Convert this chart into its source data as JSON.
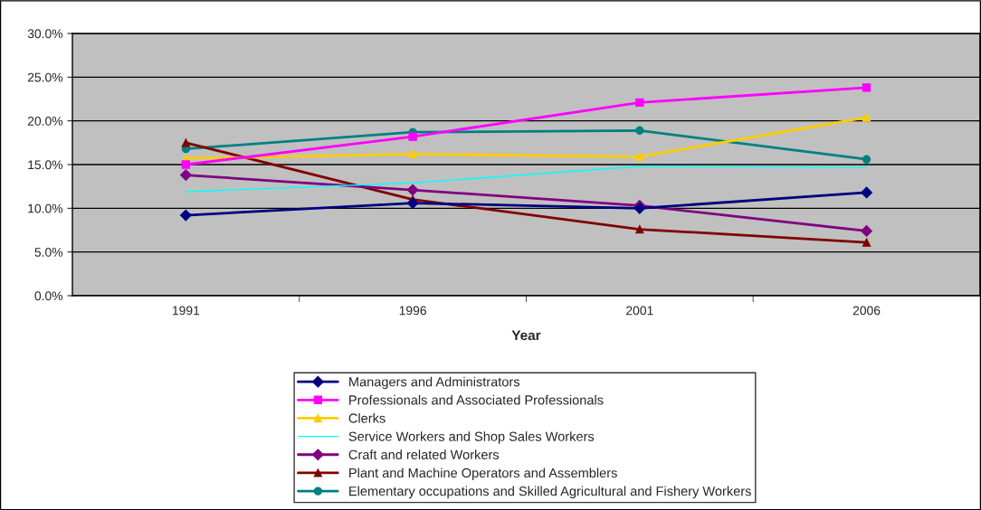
{
  "chart_data": {
    "type": "line",
    "xlabel": "Year",
    "categories": [
      "1991",
      "1996",
      "2001",
      "2006"
    ],
    "ylim": [
      0,
      30
    ],
    "yticks": [
      {
        "value": 0,
        "label": "0.0%"
      },
      {
        "value": 5,
        "label": "5.0%"
      },
      {
        "value": 10,
        "label": "10.0%"
      },
      {
        "value": 15,
        "label": "15.0%"
      },
      {
        "value": 20,
        "label": "20.0%"
      },
      {
        "value": 25,
        "label": "25.0%"
      },
      {
        "value": 30,
        "label": "30.0%"
      }
    ],
    "grid": "y",
    "legend": "bottom",
    "series": [
      {
        "name": "Managers and Administrators",
        "color": "#000080",
        "marker": "diamond",
        "values": [
          9.2,
          10.6,
          10.0,
          11.8
        ]
      },
      {
        "name": "Professionals and Associated Professionals",
        "color": "#ff00ff",
        "marker": "square",
        "values": [
          15.0,
          18.2,
          22.1,
          23.8
        ]
      },
      {
        "name": "Clerks",
        "color": "#ffcc00",
        "marker": "triangle",
        "values": [
          15.7,
          16.2,
          15.9,
          20.4
        ]
      },
      {
        "name": "Service Workers and Shop Sales Workers",
        "color": "#00ffff",
        "marker": "none",
        "values": [
          11.9,
          12.9,
          14.8,
          14.7
        ]
      },
      {
        "name": "Craft and related Workers",
        "color": "#800080",
        "marker": "diamond",
        "values": [
          13.8,
          12.1,
          10.3,
          7.4
        ]
      },
      {
        "name": "Plant and Machine Operators and Assemblers",
        "color": "#800000",
        "marker": "triangle",
        "values": [
          17.5,
          11.0,
          7.6,
          6.1
        ]
      },
      {
        "name": "Elementary occupations and Skilled Agricultural and Fishery Workers",
        "color": "#008080",
        "marker": "circle",
        "values": [
          16.8,
          18.7,
          18.9,
          15.6
        ]
      }
    ]
  }
}
